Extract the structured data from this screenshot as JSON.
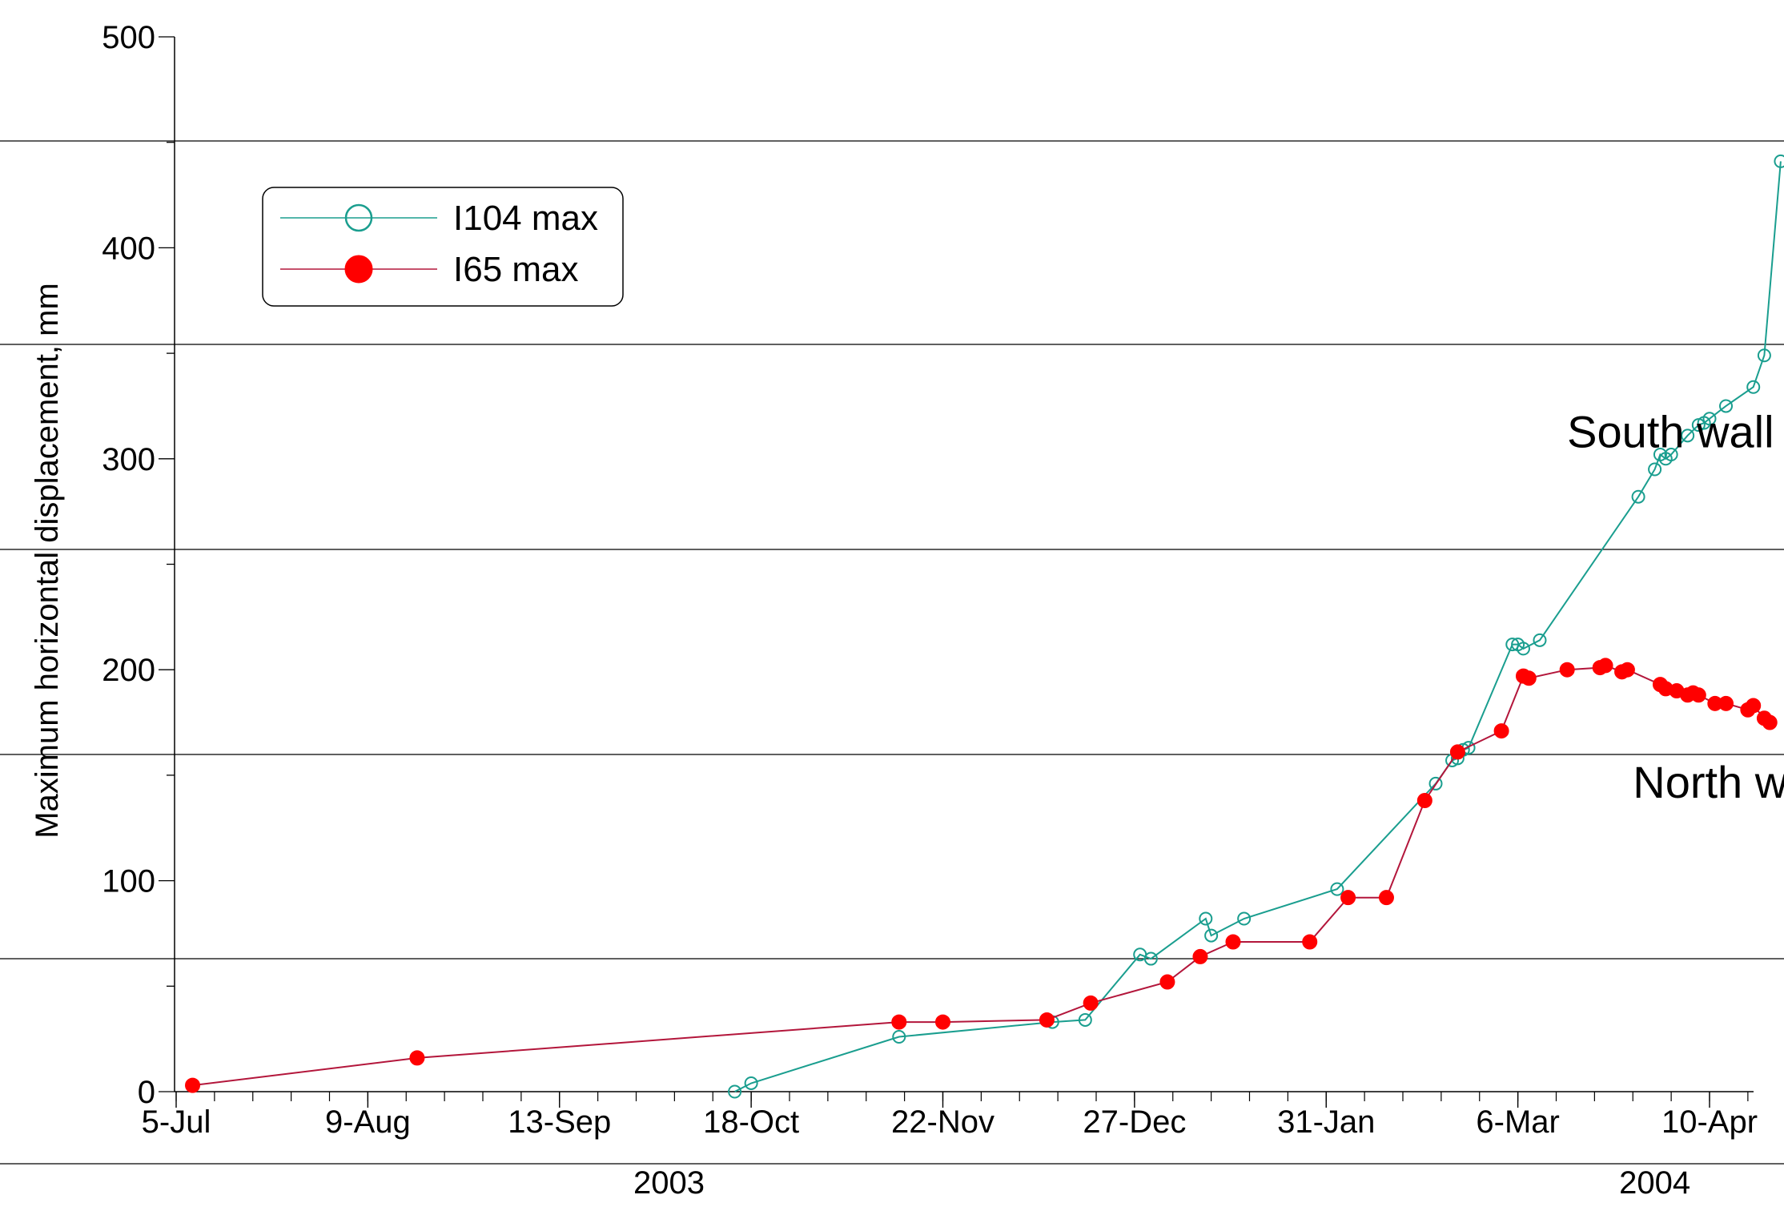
{
  "chart_data": {
    "type": "line",
    "title": "",
    "ylabel": "Maximum horizontal displacement, mm",
    "xlabel": "",
    "ylim": [
      0,
      500
    ],
    "yticks": [
      0,
      100,
      200,
      300,
      400,
      500
    ],
    "y_minor_step": 50,
    "xlim": [
      "2003-07-05",
      "2004-04-28"
    ],
    "xticks": [
      {
        "date": "2003-07-05",
        "label": "5-Jul"
      },
      {
        "date": "2003-08-09",
        "label": "9-Aug"
      },
      {
        "date": "2003-09-13",
        "label": "13-Sep"
      },
      {
        "date": "2003-10-18",
        "label": "18-Oct"
      },
      {
        "date": "2003-11-22",
        "label": "22-Nov"
      },
      {
        "date": "2003-12-27",
        "label": "27-Dec"
      },
      {
        "date": "2004-01-31",
        "label": "31-Jan"
      },
      {
        "date": "2004-03-06",
        "label": "6-Mar"
      },
      {
        "date": "2004-04-10",
        "label": "10-Apr"
      }
    ],
    "x_minor_step_days": 7,
    "year_labels": [
      {
        "label": "2003",
        "date": "2003-10-03"
      },
      {
        "label": "2004",
        "date": "2004-03-31"
      }
    ],
    "grid": "horizontal",
    "legend_position": "top-left",
    "annotations": [
      {
        "text": "South wall",
        "date": "2004-03-15",
        "y": 313
      },
      {
        "text": "North wall",
        "date": "2004-03-27",
        "y": 147
      }
    ],
    "series": [
      {
        "name": "I104 max",
        "color": "#1a9e8f",
        "marker": "open-circle",
        "points": [
          [
            "2003-10-15",
            0
          ],
          [
            "2003-10-18",
            4
          ],
          [
            "2003-11-14",
            26
          ],
          [
            "2003-12-12",
            33
          ],
          [
            "2003-12-18",
            34
          ],
          [
            "2003-12-28",
            65
          ],
          [
            "2003-12-30",
            63
          ],
          [
            "2004-01-09",
            82
          ],
          [
            "2004-01-10",
            74
          ],
          [
            "2004-01-16",
            82
          ],
          [
            "2004-02-02",
            96
          ],
          [
            "2004-02-20",
            146
          ],
          [
            "2004-02-23",
            157
          ],
          [
            "2004-02-24",
            158
          ],
          [
            "2004-02-25",
            162
          ],
          [
            "2004-02-26",
            163
          ],
          [
            "2004-03-05",
            212
          ],
          [
            "2004-03-06",
            212
          ],
          [
            "2004-03-07",
            210
          ],
          [
            "2004-03-10",
            214
          ],
          [
            "2004-03-28",
            282
          ],
          [
            "2004-03-31",
            295
          ],
          [
            "2004-04-01",
            302
          ],
          [
            "2004-04-02",
            300
          ],
          [
            "2004-04-03",
            302
          ],
          [
            "2004-04-06",
            311
          ],
          [
            "2004-04-08",
            316
          ],
          [
            "2004-04-09",
            317
          ],
          [
            "2004-04-10",
            319
          ],
          [
            "2004-04-13",
            325
          ],
          [
            "2004-04-18",
            334
          ],
          [
            "2004-04-20",
            349
          ],
          [
            "2004-04-23",
            441
          ]
        ]
      },
      {
        "name": "I65 max",
        "color": "#ff0000",
        "line_color": "#b3163b",
        "marker": "filled-circle",
        "points": [
          [
            "2003-07-08",
            3
          ],
          [
            "2003-08-18",
            16
          ],
          [
            "2003-11-14",
            33
          ],
          [
            "2003-11-22",
            33
          ],
          [
            "2003-12-11",
            34
          ],
          [
            "2003-12-19",
            42
          ],
          [
            "2004-01-02",
            52
          ],
          [
            "2004-01-08",
            64
          ],
          [
            "2004-01-14",
            71
          ],
          [
            "2004-01-28",
            71
          ],
          [
            "2004-02-04",
            92
          ],
          [
            "2004-02-11",
            92
          ],
          [
            "2004-02-18",
            138
          ],
          [
            "2004-02-24",
            161
          ],
          [
            "2004-03-03",
            171
          ],
          [
            "2004-03-07",
            197
          ],
          [
            "2004-03-08",
            196
          ],
          [
            "2004-03-15",
            200
          ],
          [
            "2004-03-21",
            201
          ],
          [
            "2004-03-22",
            202
          ],
          [
            "2004-03-25",
            199
          ],
          [
            "2004-03-26",
            200
          ],
          [
            "2004-04-01",
            193
          ],
          [
            "2004-04-02",
            191
          ],
          [
            "2004-04-04",
            190
          ],
          [
            "2004-04-06",
            188
          ],
          [
            "2004-04-07",
            189
          ],
          [
            "2004-04-08",
            188
          ],
          [
            "2004-04-11",
            184
          ],
          [
            "2004-04-13",
            184
          ],
          [
            "2004-04-17",
            181
          ],
          [
            "2004-04-18",
            183
          ],
          [
            "2004-04-20",
            177
          ],
          [
            "2004-04-21",
            175
          ]
        ]
      }
    ]
  }
}
